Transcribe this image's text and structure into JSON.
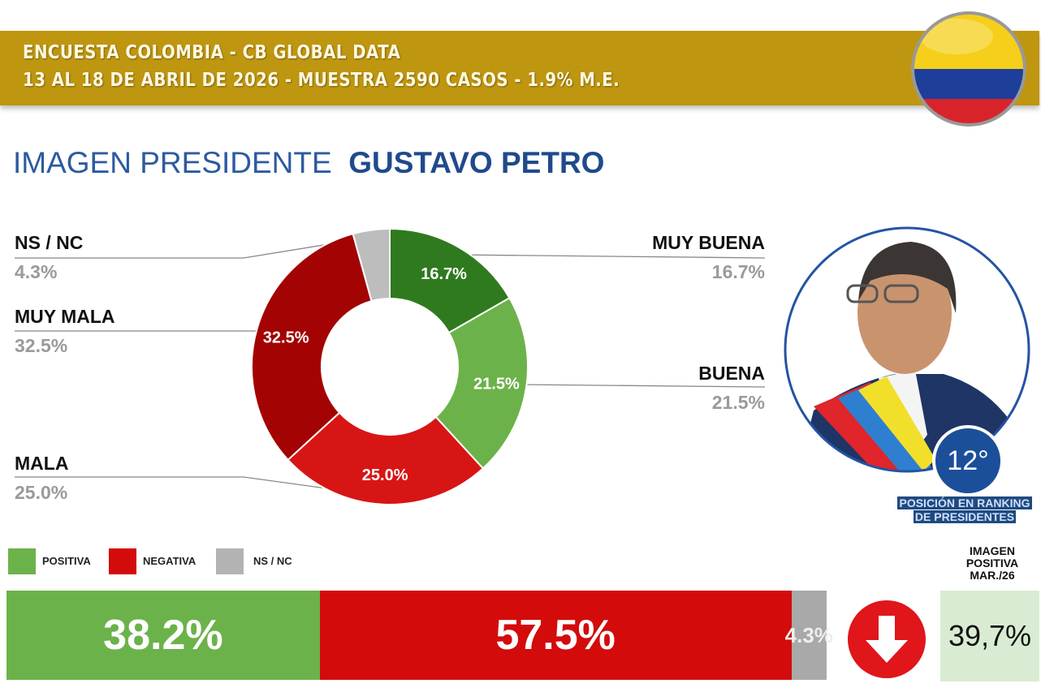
{
  "header": {
    "line1": "ENCUESTA COLOMBIA - CB GLOBAL DATA",
    "line2": "13 AL 18 DE ABRIL DE 2026 - MUESTRA 2590 CASOS - 1.9% M.E."
  },
  "title": {
    "prefix": "IMAGEN PRESIDENTE",
    "name": "GUSTAVO PETRO"
  },
  "ranking": {
    "position": "12°",
    "line1": "POSICIÓN EN RANKING",
    "line2": "DE PRESIDENTES"
  },
  "previous": {
    "label1": "IMAGEN",
    "label2": "POSITIVA",
    "label3": "MAR./26",
    "value": "39,7%"
  },
  "trend_icon": "arrow-down-icon",
  "chart_data": [
    {
      "type": "pie",
      "variant": "donut",
      "categories": [
        "MUY BUENA",
        "BUENA",
        "MALA",
        "MUY MALA",
        "NS / NC"
      ],
      "values": [
        16.7,
        21.5,
        25.0,
        32.5,
        4.3
      ],
      "labels": [
        "16.7%",
        "21.5%",
        "25.0%",
        "32.5%",
        "4.3%"
      ],
      "colors": [
        "#2f7a1e",
        "#6cb24a",
        "#d81515",
        "#a30303",
        "#bdbdbd"
      ]
    },
    {
      "type": "bar",
      "variant": "stacked-horizontal-100",
      "categories": [
        "POSITIVA",
        "NEGATIVA",
        "NS / NC"
      ],
      "values": [
        38.2,
        57.5,
        4.3
      ],
      "labels": [
        "38.2%",
        "57.5%",
        "4.3%"
      ],
      "colors": [
        "#6cb24a",
        "#d30b0b",
        "#a9a9a9"
      ],
      "legend": "top-left"
    }
  ]
}
